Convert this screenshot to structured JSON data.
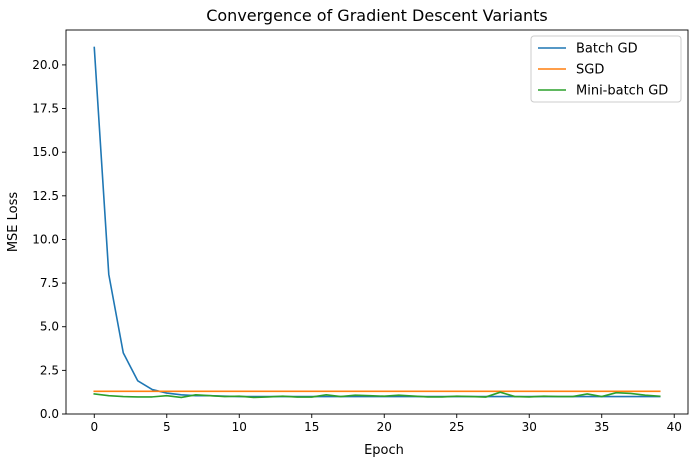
{
  "chart_data": {
    "type": "line",
    "title": "Convergence of Gradient Descent Variants",
    "xlabel": "Epoch",
    "ylabel": "MSE Loss",
    "xlim": [
      -1.95,
      40.95
    ],
    "ylim": [
      0,
      22.0
    ],
    "xticks": [
      0,
      5,
      10,
      15,
      20,
      25,
      30,
      35,
      40
    ],
    "xtick_labels": [
      "0",
      "5",
      "10",
      "15",
      "20",
      "25",
      "30",
      "35",
      "40"
    ],
    "yticks": [
      0,
      2.5,
      5,
      7.5,
      10,
      12.5,
      15,
      17.5,
      20
    ],
    "ytick_labels": [
      "0.0",
      "2.5",
      "5.0",
      "7.5",
      "10.0",
      "12.5",
      "15.0",
      "17.5",
      "20.0"
    ],
    "grid": false,
    "legend_position": "top-right",
    "x": [
      0,
      1,
      2,
      3,
      4,
      5,
      6,
      7,
      8,
      9,
      10,
      11,
      12,
      13,
      14,
      15,
      16,
      17,
      18,
      19,
      20,
      21,
      22,
      23,
      24,
      25,
      26,
      27,
      28,
      29,
      30,
      31,
      32,
      33,
      34,
      35,
      36,
      37,
      38,
      39
    ],
    "series": [
      {
        "name": "Batch GD",
        "color": "#1f77b4",
        "values": [
          21.0,
          8.0,
          3.5,
          1.9,
          1.4,
          1.2,
          1.1,
          1.05,
          1.05,
          1.02,
          1.0,
          1.0,
          1.0,
          1.0,
          1.0,
          1.0,
          1.0,
          1.0,
          1.0,
          1.0,
          1.0,
          1.0,
          1.0,
          1.0,
          1.0,
          1.0,
          1.0,
          1.0,
          1.0,
          1.0,
          1.0,
          1.0,
          1.0,
          1.0,
          1.0,
          1.0,
          1.0,
          1.0,
          1.0,
          1.0
        ]
      },
      {
        "name": "SGD",
        "color": "#ff7f0e",
        "values": [
          1.3,
          1.3,
          1.3,
          1.3,
          1.3,
          1.3,
          1.3,
          1.3,
          1.3,
          1.3,
          1.3,
          1.3,
          1.3,
          1.3,
          1.3,
          1.3,
          1.3,
          1.3,
          1.3,
          1.3,
          1.3,
          1.3,
          1.3,
          1.3,
          1.3,
          1.3,
          1.3,
          1.3,
          1.3,
          1.3,
          1.3,
          1.3,
          1.3,
          1.3,
          1.3,
          1.3,
          1.3,
          1.3,
          1.3,
          1.3
        ]
      },
      {
        "name": "Mini-batch GD",
        "color": "#2ca02c",
        "values": [
          1.15,
          1.05,
          1.0,
          0.98,
          0.98,
          1.05,
          0.95,
          1.1,
          1.05,
          1.0,
          1.02,
          0.95,
          0.98,
          1.02,
          0.97,
          0.97,
          1.1,
          1.0,
          1.08,
          1.05,
          1.02,
          1.08,
          1.03,
          0.98,
          0.98,
          1.02,
          1.0,
          0.97,
          1.25,
          1.0,
          0.98,
          1.02,
          1.0,
          1.0,
          1.15,
          1.0,
          1.22,
          1.18,
          1.08,
          1.02
        ]
      }
    ]
  }
}
